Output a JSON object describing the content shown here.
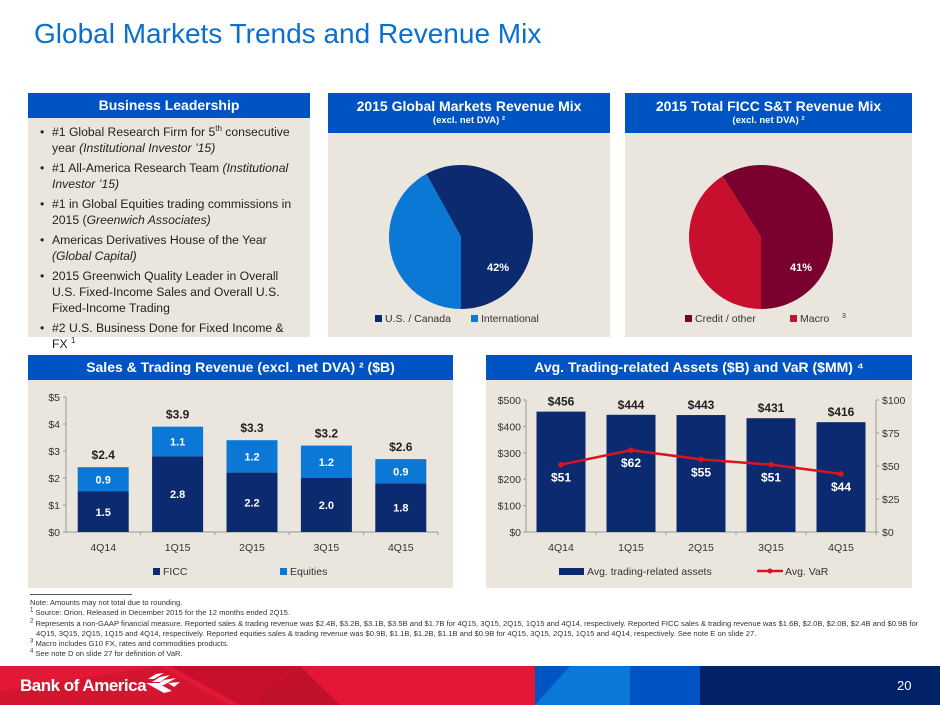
{
  "title": "Global Markets Trends and Revenue Mix",
  "colors": {
    "header_blue": "#0053c2",
    "title_blue": "#0a6fce",
    "panel_bg": "#ebe6dd",
    "navy": "#0b2a6f",
    "light_blue": "#0a78d4",
    "maroon": "#7a0030",
    "red": "#c8102e",
    "var_line": "#d8141f"
  },
  "business_leadership": {
    "header": "Business Leadership",
    "items": [
      {
        "pre": "#1 Global Research Firm for 5",
        "sup": "th",
        "post": " consecutive year ",
        "italic": "(Institutional Investor ’15)"
      },
      {
        "pre": "#1 All-America Research Team ",
        "sup": "",
        "post": "",
        "italic": "(Institutional Investor ’15)"
      },
      {
        "pre": "#1 in Global Equities trading commissions in 2015 (",
        "sup": "",
        "post": "",
        "italic": "Greenwich Associates)"
      },
      {
        "pre": "Americas Derivatives House of the Year ",
        "sup": "",
        "post": "",
        "italic": "(Global Capital)"
      },
      {
        "pre": "2015 Greenwich Quality Leader in Overall U.S. Fixed-Income Sales and Overall U.S. Fixed-Income Trading",
        "sup": "",
        "post": "",
        "italic": ""
      },
      {
        "pre": "#2 U.S. Business Done for Fixed Income & FX ",
        "sup": "1",
        "post": "",
        "italic": ""
      }
    ]
  },
  "chart_data": [
    {
      "type": "pie",
      "title": "2015 Global Markets Revenue Mix",
      "subtitle": "(excl. net DVA) ²",
      "slices": [
        {
          "label": "U.S. / Canada",
          "value": 58,
          "display": "58%",
          "color": "#0b2a6f"
        },
        {
          "label": "International",
          "value": 42,
          "display": "42%",
          "color": "#0a78d4"
        }
      ],
      "legend": "bottom"
    },
    {
      "type": "pie",
      "title": "2015 Total FICC S&T Revenue Mix",
      "subtitle": "(excl. net DVA) ²",
      "slices": [
        {
          "label": "Credit / other",
          "value": 59,
          "display": "59%",
          "color": "#7a0030"
        },
        {
          "label": "Macro",
          "label_sup": "3",
          "value": 41,
          "display": "41%",
          "color": "#c8102e"
        }
      ],
      "legend": "bottom"
    },
    {
      "type": "bar",
      "stacked": true,
      "title": "Sales & Trading Revenue (excl. net DVA) ² ($B)",
      "categories": [
        "4Q14",
        "1Q15",
        "2Q15",
        "3Q15",
        "4Q15"
      ],
      "series": [
        {
          "name": "FICC",
          "values": [
            1.5,
            2.8,
            2.2,
            2.0,
            1.8
          ],
          "color": "#0b2a6f"
        },
        {
          "name": "Equities",
          "values": [
            0.9,
            1.1,
            1.2,
            1.2,
            0.9
          ],
          "color": "#0a78d4"
        }
      ],
      "totals": [
        "$2.4",
        "$3.9",
        "$3.3",
        "$3.2",
        "$2.6"
      ],
      "yticks": [
        "$0",
        "$1",
        "$2",
        "$3",
        "$4",
        "$5"
      ],
      "ylim": [
        0,
        5
      ],
      "legend": "bottom"
    },
    {
      "type": "bar",
      "combo_line": true,
      "title": "Avg. Trading-related Assets ($B) and VaR ($MM) ⁴",
      "categories": [
        "4Q14",
        "1Q15",
        "2Q15",
        "3Q15",
        "4Q15"
      ],
      "series": [
        {
          "name": "Avg. trading-related assets",
          "type": "bar",
          "axis": "left",
          "values": [
            456,
            444,
            443,
            431,
            416
          ],
          "labels": [
            "$456",
            "$444",
            "$443",
            "$431",
            "$416"
          ],
          "color": "#0b2a6f"
        },
        {
          "name": "Avg. VaR",
          "type": "line",
          "axis": "right",
          "values": [
            51,
            62,
            55,
            51,
            44
          ],
          "labels": [
            "$51",
            "$62",
            "$55",
            "$51",
            "$44"
          ],
          "color": "#d8141f"
        }
      ],
      "yticks_left": [
        "$0",
        "$100",
        "$200",
        "$300",
        "$400",
        "$500"
      ],
      "ylim_left": [
        0,
        500
      ],
      "yticks_right": [
        "$0",
        "$25",
        "$50",
        "$75",
        "$100"
      ],
      "ylim_right": [
        0,
        100
      ],
      "legend": "bottom"
    }
  ],
  "notes": [
    "Note: Amounts may not total due to rounding.",
    "Source: Orion. Released in December 2015 for the 12 months ended 2Q15.",
    "Represents a non-GAAP financial measure. Reported sales & trading revenue was $2.4B, $3.2B, $3.1B, $3.5B and $1.7B for 4Q15, 3Q15, 2Q15, 1Q15 and 4Q14, respectively. Reported FICC sales & trading revenue was $1.6B, $2.0B, $2.0B, $2.4B and $0.9B for 4Q15, 3Q15, 2Q15, 1Q15 and 4Q14, respectively. Reported equities sales & trading revenue was $0.9B, $1.1B, $1.2B, $1.1B and $0.9B for 4Q15, 3Q15, 2Q15, 1Q15 and 4Q14, respectively. See note E on slide 27.",
    "Macro includes G10 FX, rates and commodities products.",
    "See note D on slide 27 for definition of VaR."
  ],
  "note_markers": [
    "",
    "1",
    "2",
    "3",
    "4"
  ],
  "footer": {
    "brand": "Bank of America",
    "page_number": "20"
  }
}
